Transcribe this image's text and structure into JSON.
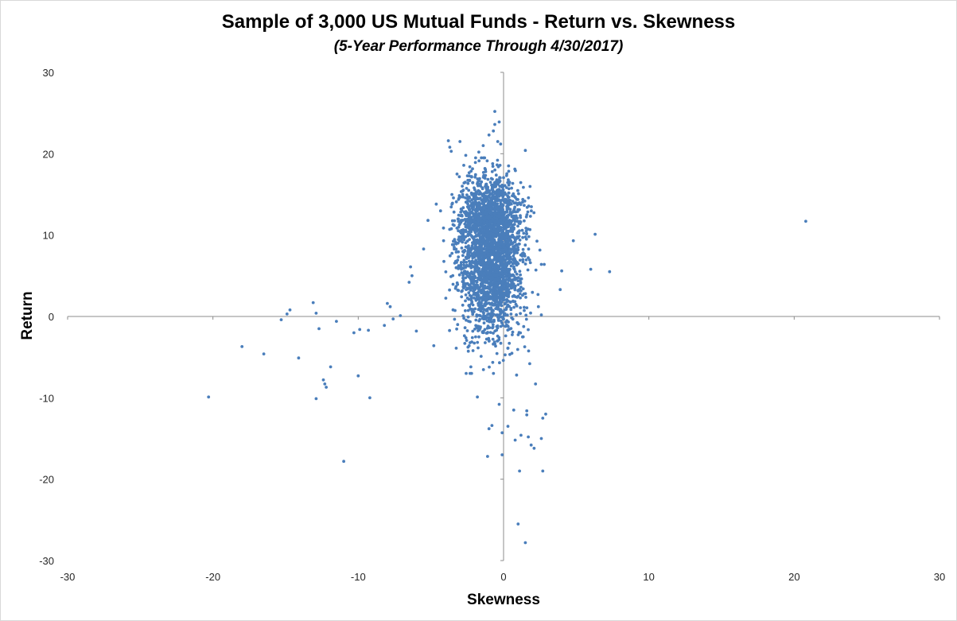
{
  "chart_data": {
    "type": "scatter",
    "title": "Sample of 3,000 US Mutual Funds - Return vs. Skewness",
    "subtitle": "(5-Year Performance Through 4/30/2017)",
    "xlabel": "Skewness",
    "ylabel": "Return",
    "xlim": [
      -30,
      30
    ],
    "ylim": [
      -30,
      30
    ],
    "x_ticks": [
      -30,
      -20,
      -10,
      0,
      10,
      20,
      30
    ],
    "y_ticks": [
      30,
      20,
      10,
      0,
      -10,
      -20,
      -30
    ],
    "grid": false,
    "legend": "none",
    "series": [
      {
        "color": "#4a7ebb",
        "cluster": {
          "count": 2900,
          "center": [
            -0.9,
            8.5
          ],
          "spread": [
            1.1,
            5.0
          ]
        },
        "points": [
          [
            -20.3,
            -9.9
          ],
          [
            -18.0,
            -3.7
          ],
          [
            -16.5,
            -4.6
          ],
          [
            -15.3,
            -0.4
          ],
          [
            -14.9,
            0.3
          ],
          [
            -14.7,
            0.8
          ],
          [
            -14.1,
            -5.1
          ],
          [
            -13.1,
            1.7
          ],
          [
            -12.9,
            0.4
          ],
          [
            -12.9,
            -10.1
          ],
          [
            -12.7,
            -1.5
          ],
          [
            -12.4,
            -7.8
          ],
          [
            -12.3,
            -8.3
          ],
          [
            -12.2,
            -8.7
          ],
          [
            -11.9,
            -6.2
          ],
          [
            -11.5,
            -0.6
          ],
          [
            -11.0,
            -17.8
          ],
          [
            -10.3,
            -2.0
          ],
          [
            -9.9,
            -1.6
          ],
          [
            -10.0,
            -7.3
          ],
          [
            -9.3,
            -1.7
          ],
          [
            -9.2,
            -10.0
          ],
          [
            -8.2,
            -1.1
          ],
          [
            -8.0,
            1.6
          ],
          [
            -7.8,
            1.2
          ],
          [
            -7.6,
            -0.3
          ],
          [
            -7.1,
            0.1
          ],
          [
            -6.5,
            4.2
          ],
          [
            -6.4,
            6.1
          ],
          [
            -6.3,
            5.0
          ],
          [
            -6.0,
            -1.8
          ],
          [
            -5.5,
            8.3
          ],
          [
            -5.2,
            11.8
          ],
          [
            -4.8,
            -3.6
          ],
          [
            -3.8,
            21.6
          ],
          [
            -3.7,
            20.8
          ],
          [
            -3.6,
            20.3
          ],
          [
            -3.2,
            17.5
          ],
          [
            -3.0,
            21.5
          ],
          [
            -2.6,
            19.8
          ],
          [
            -2.2,
            17.2
          ],
          [
            -1.7,
            20.2
          ],
          [
            -1.4,
            21.0
          ],
          [
            -1.0,
            22.3
          ],
          [
            -0.7,
            22.8
          ],
          [
            -0.6,
            25.2
          ],
          [
            -0.6,
            23.6
          ],
          [
            -0.3,
            23.9
          ],
          [
            -0.4,
            21.5
          ],
          [
            -0.2,
            21.2
          ],
          [
            1.5,
            20.4
          ],
          [
            4.8,
            9.3
          ],
          [
            6.3,
            10.1
          ],
          [
            6.0,
            5.8
          ],
          [
            7.3,
            5.5
          ],
          [
            4.0,
            5.6
          ],
          [
            3.9,
            3.3
          ],
          [
            2.6,
            6.4
          ],
          [
            2.8,
            6.4
          ],
          [
            2.4,
            1.2
          ],
          [
            2.6,
            0.2
          ],
          [
            20.8,
            11.7
          ],
          [
            2.9,
            -12.0
          ],
          [
            2.7,
            -12.5
          ],
          [
            2.6,
            -15.0
          ],
          [
            2.1,
            -16.2
          ],
          [
            1.9,
            -15.8
          ],
          [
            1.7,
            -14.8
          ],
          [
            1.6,
            -11.6
          ],
          [
            1.6,
            -12.1
          ],
          [
            1.2,
            -14.6
          ],
          [
            0.8,
            -15.2
          ],
          [
            0.7,
            -11.5
          ],
          [
            0.3,
            -13.5
          ],
          [
            -0.1,
            -14.3
          ],
          [
            -0.3,
            -10.8
          ],
          [
            -0.8,
            -13.4
          ],
          [
            -1.0,
            -13.8
          ],
          [
            -1.1,
            -17.2
          ],
          [
            -0.1,
            -17.0
          ],
          [
            1.1,
            -19.0
          ],
          [
            2.7,
            -19.0
          ],
          [
            1.0,
            -25.5
          ],
          [
            1.5,
            -27.8
          ],
          [
            -1.8,
            -9.9
          ],
          [
            0.9,
            -7.2
          ],
          [
            2.2,
            -8.3
          ],
          [
            1.8,
            -5.8
          ],
          [
            -2.1,
            -4.2
          ]
        ]
      }
    ]
  }
}
